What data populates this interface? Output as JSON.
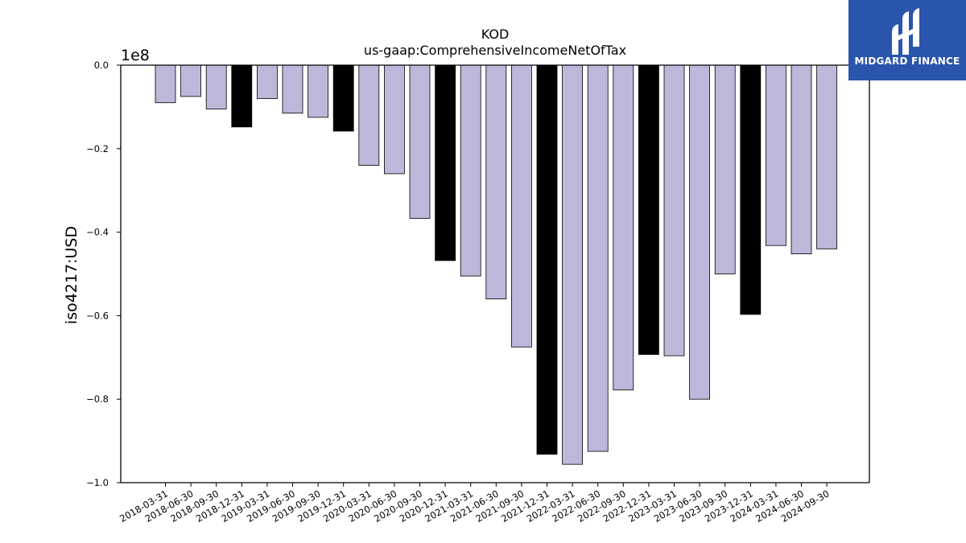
{
  "chart_data": {
    "type": "bar",
    "title": "KOD",
    "subtitle": "us-gaap:ComprehensiveIncomeNetOfTax",
    "ylabel": "iso4217:USD",
    "xlabel": "",
    "scale_label": "1e8",
    "ylim": [
      -1.0,
      0.0
    ],
    "yticks": [
      "0.0",
      "−0.2",
      "−0.4",
      "−0.6",
      "−0.8",
      "−1.0"
    ],
    "ytick_values": [
      0.0,
      -0.2,
      -0.4,
      -0.6,
      -0.8,
      -1.0
    ],
    "categories": [
      "2018-03-31",
      "2018-06-30",
      "2018-09-30",
      "2018-12-31",
      "2019-03-31",
      "2019-06-30",
      "2019-09-30",
      "2019-12-31",
      "2020-03-31",
      "2020-06-30",
      "2020-09-30",
      "2020-12-31",
      "2021-03-31",
      "2021-06-30",
      "2021-09-30",
      "2021-12-31",
      "2022-03-31",
      "2022-06-30",
      "2022-09-30",
      "2022-12-31",
      "2023-03-31",
      "2023-06-30",
      "2023-09-30",
      "2023-12-31",
      "2024-03-31",
      "2024-06-30",
      "2024-09-30"
    ],
    "values": [
      -0.09,
      -0.075,
      -0.105,
      -0.148,
      -0.08,
      -0.115,
      -0.125,
      -0.158,
      -0.24,
      -0.26,
      -0.367,
      -0.468,
      -0.505,
      -0.56,
      -0.675,
      -0.932,
      -0.956,
      -0.925,
      -0.778,
      -0.693,
      -0.696,
      -0.8,
      -0.5,
      -0.597,
      -0.432,
      -0.452,
      -0.44
    ],
    "highlight_color": "#000000",
    "bar_color": "#bcb8da",
    "grid": false,
    "legend": "none"
  },
  "logo": {
    "text": "MIDGARD FINANCE",
    "background": "#2a55ad"
  }
}
